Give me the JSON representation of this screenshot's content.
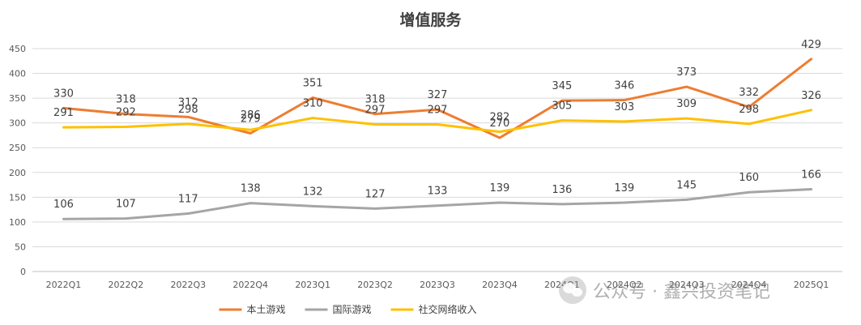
{
  "chart_data": {
    "type": "line",
    "title": "增值服务",
    "categories": [
      "2022Q1",
      "2022Q2",
      "2022Q3",
      "2022Q4",
      "2023Q1",
      "2023Q2",
      "2023Q3",
      "2023Q4",
      "2024Q1",
      "2024Q2",
      "2024Q3",
      "2024Q4",
      "2025Q1"
    ],
    "yticks": [
      "0",
      "50",
      "100",
      "150",
      "200",
      "250",
      "300",
      "350",
      "400",
      "450"
    ],
    "ylim": [
      0,
      450
    ],
    "grid": true,
    "legend_position": "bottom",
    "series": [
      {
        "name": "本土游戏",
        "color": "#ED7D31",
        "values": [
          330,
          318,
          312,
          279,
          351,
          318,
          327,
          270,
          345,
          346,
          373,
          332,
          429
        ],
        "labels": [
          "330",
          "318",
          "312",
          "279",
          "351",
          "318",
          "327",
          "270",
          "345",
          "346",
          "373",
          "332",
          "429"
        ]
      },
      {
        "name": "国际游戏",
        "color": "#A5A5A5",
        "values": [
          106,
          107,
          117,
          138,
          132,
          127,
          133,
          139,
          136,
          139,
          145,
          160,
          166
        ],
        "labels": [
          "106",
          "107",
          "117",
          "138",
          "132",
          "127",
          "133",
          "139",
          "136",
          "139",
          "145",
          "160",
          "166"
        ]
      },
      {
        "name": "社交网络收入",
        "color": "#FFC000",
        "values": [
          291,
          292,
          298,
          286,
          310,
          297,
          297,
          282,
          305,
          303,
          309,
          298,
          326
        ],
        "labels": [
          "291",
          "292",
          "298",
          "286",
          "310",
          "297",
          "297",
          "282",
          "305",
          "303",
          "309",
          "298",
          "326"
        ]
      }
    ]
  },
  "watermark": {
    "icon": "wechat-icon",
    "text": "公众号 · 鑫兴投资笔记"
  }
}
